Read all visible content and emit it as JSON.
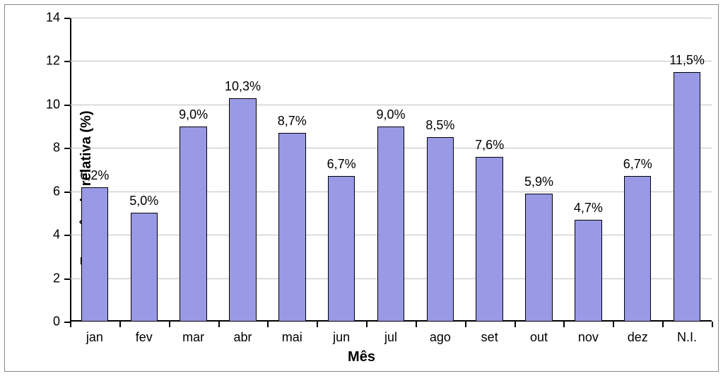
{
  "chart": {
    "type": "bar",
    "categories": [
      "jan",
      "fev",
      "mar",
      "abr",
      "mai",
      "jun",
      "jul",
      "ago",
      "set",
      "out",
      "nov",
      "dez",
      "N.I."
    ],
    "values": [
      6.2,
      5.0,
      9.0,
      10.3,
      8.7,
      6.7,
      9.0,
      8.5,
      7.6,
      5.9,
      4.7,
      6.7,
      11.5
    ],
    "value_labels": [
      "6,2%",
      "5,0%",
      "9,0%",
      "10,3%",
      "8,7%",
      "6,7%",
      "9,0%",
      "8,5%",
      "7,6%",
      "5,9%",
      "4,7%",
      "6,7%",
      "11,5%"
    ],
    "bar_color": "#9999e6",
    "bar_border_color": "#000000",
    "title": "",
    "ylabel": "Frequência relativa (%)",
    "xlabel": "Mês",
    "label_fontsize": 20,
    "tick_fontsize": 18,
    "value_label_fontsize": 18,
    "ylim": [
      0,
      14
    ],
    "ytick_step": 2,
    "yticks": [
      0,
      2,
      4,
      6,
      8,
      10,
      12,
      14
    ],
    "background_color": "#ffffff",
    "grid_color": "#c0c0c0",
    "axis_color": "#000000",
    "frame_border_color": "#888888",
    "bar_width_ratio": 0.55,
    "aspect_width": 1023,
    "aspect_height": 532
  }
}
